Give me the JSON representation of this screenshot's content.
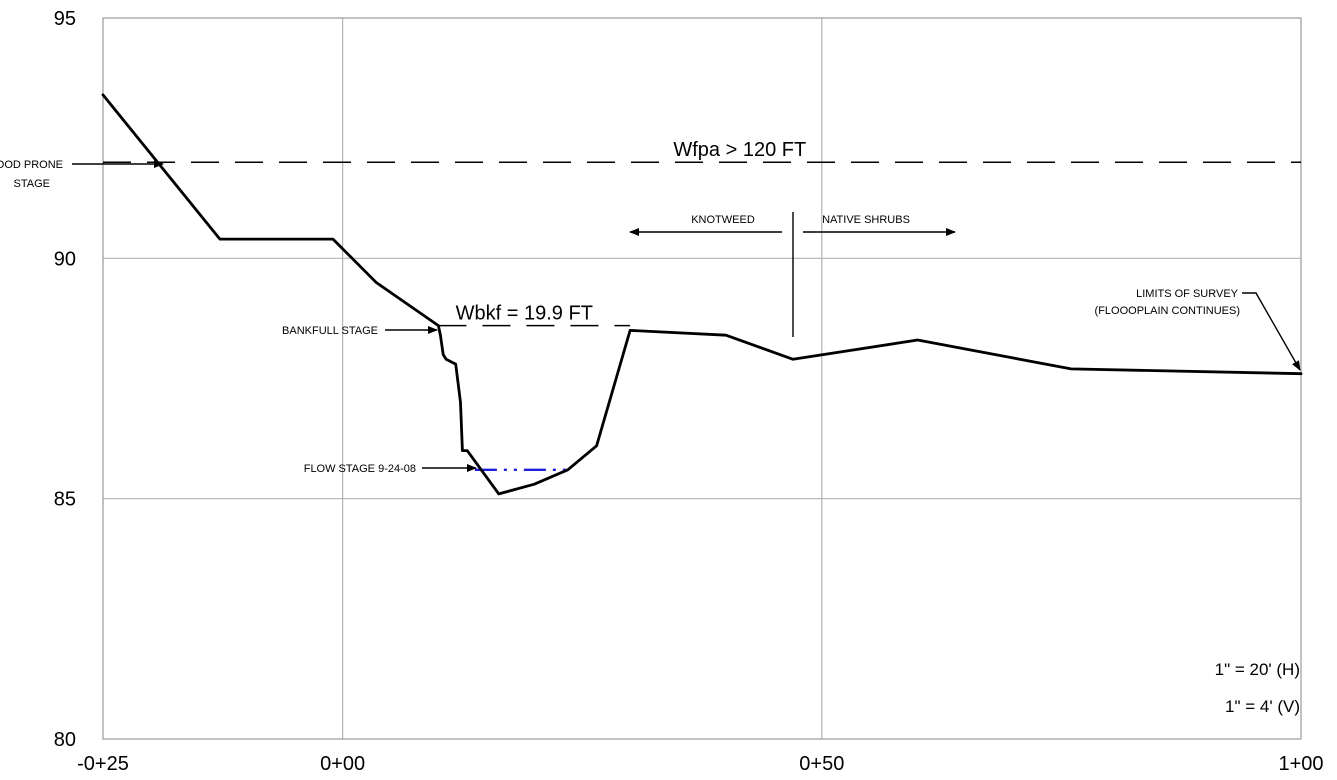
{
  "chart_data": {
    "type": "line",
    "title": "",
    "xlabel": "",
    "ylabel": "",
    "x_range": [
      -25,
      100
    ],
    "ylim": [
      80,
      95
    ],
    "x_ticks": [
      {
        "value": -25,
        "label": "-0+25"
      },
      {
        "value": 0,
        "label": "0+00"
      },
      {
        "value": 50,
        "label": "0+50"
      },
      {
        "value": 100,
        "label": "1+00"
      }
    ],
    "y_ticks": [
      {
        "value": 95,
        "label": "95"
      },
      {
        "value": 90,
        "label": "90"
      },
      {
        "value": 85,
        "label": "85"
      },
      {
        "value": 80,
        "label": "80"
      }
    ],
    "grid": true,
    "series": [
      {
        "name": "",
        "x": [
          -25,
          -12.8,
          -1,
          3.5,
          10,
          10.2,
          10.5,
          10.8,
          11.8,
          12.3,
          12.5,
          13,
          16.3,
          20,
          23.5,
          26.5,
          30,
          40,
          47,
          60,
          76,
          100
        ],
        "y": [
          93.4,
          90.4,
          90.4,
          89.5,
          88.6,
          88.4,
          88.0,
          87.9,
          87.8,
          87.0,
          86.0,
          86.0,
          85.1,
          85.3,
          85.6,
          86.1,
          88.5,
          88.4,
          87.9,
          88.3,
          87.7,
          87.6
        ]
      }
    ],
    "reference_lines": [
      {
        "label": "Wfpa > 120 FT",
        "y": 92.0,
        "x_from": -25,
        "x_to": 100,
        "style": "dashed"
      },
      {
        "label": "Wbkf = 19.9 FT",
        "y": 88.6,
        "x_from": 10,
        "x_to": 30,
        "style": "dashed"
      },
      {
        "label": "",
        "y": 85.6,
        "x_from": 13.8,
        "x_to": 23.5,
        "style": "dash-dot",
        "color": "#1f1fd6"
      }
    ],
    "annotations": [
      {
        "text": "FLOOD PRONE",
        "text2": "STAGE"
      },
      {
        "text": "BANKFULL STAGE"
      },
      {
        "text": "FLOW STAGE 9-24-08"
      },
      {
        "text": "KNOTWEED"
      },
      {
        "text": "NATIVE SHRUBS"
      },
      {
        "text": "LIMITS OF SURVEY",
        "text2": "(FLOOOPLAIN CONTINUES)"
      }
    ],
    "scale_notes": [
      "1\" = 20' (H)",
      "1\" = 4' (V)"
    ]
  }
}
